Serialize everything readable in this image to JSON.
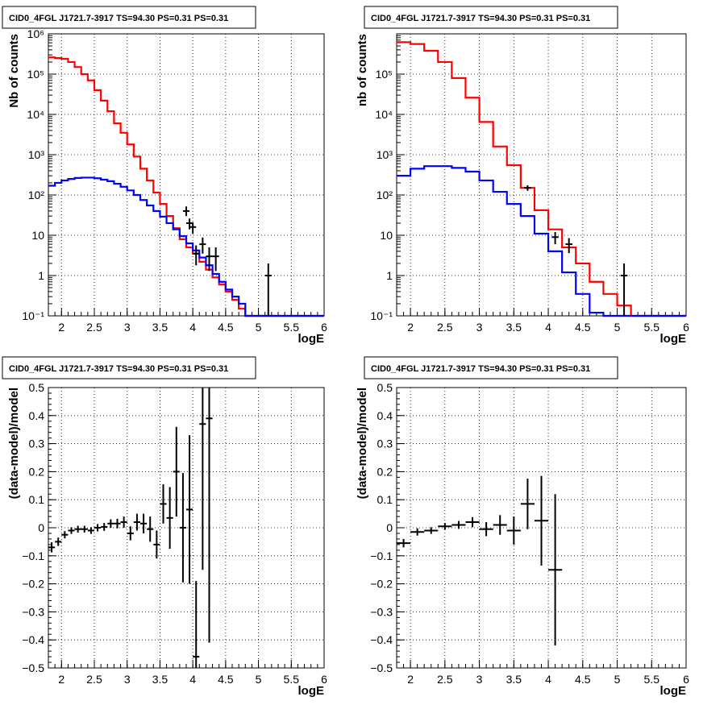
{
  "chart_data": [
    {
      "type": "histogram",
      "title": "CID0_4FGL J1721.7-3917 TS=94.30 PS=0.31 PS=0.31",
      "xlabel": "logE",
      "ylabel": "Nb of counts",
      "xlim": [
        1.8,
        6.0
      ],
      "ylim": [
        0.1,
        1000000
      ],
      "yscale": "log",
      "grid": true,
      "x_ticks": [
        "2",
        "2.5",
        "3",
        "3.5",
        "4",
        "4.5",
        "5",
        "5.5",
        "6"
      ],
      "y_ticks": [
        "10⁻¹",
        "1",
        "10",
        "10²",
        "10³",
        "10⁴",
        "10⁵",
        "10⁶"
      ],
      "bin_edges": [
        1.8,
        1.9,
        2.0,
        2.1,
        2.2,
        2.3,
        2.4,
        2.5,
        2.6,
        2.7,
        2.8,
        2.9,
        3.0,
        3.1,
        3.2,
        3.3,
        3.4,
        3.5,
        3.6,
        3.7,
        3.8,
        3.9,
        4.0,
        4.1,
        4.2,
        4.3,
        4.4,
        4.5,
        4.6,
        4.7,
        4.8,
        4.9,
        5.0,
        5.1,
        5.2,
        5.3,
        5.4,
        5.5,
        5.6,
        5.7,
        5.8,
        5.9,
        6.0
      ],
      "series": [
        {
          "color": "#ff0000",
          "values": [
            260000,
            250000,
            240000,
            200000,
            150000,
            100000,
            70000,
            40000,
            22000,
            12000,
            6000,
            3500,
            1800,
            900,
            450,
            230,
            115,
            60,
            30,
            15,
            8,
            5,
            3.5,
            2.2,
            1.4,
            0.9,
            0.6,
            0.4,
            0.25,
            0.15,
            0.1,
            0.1,
            0.1,
            0.1,
            0.1,
            0.1,
            0.1,
            0.1,
            0.1,
            0.1,
            0.1,
            0.1
          ]
        },
        {
          "color": "#0000ff",
          "values": [
            170,
            200,
            230,
            250,
            265,
            270,
            270,
            260,
            240,
            220,
            190,
            160,
            130,
            100,
            75,
            55,
            40,
            29,
            20,
            14,
            9.5,
            6.3,
            4.2,
            2.8,
            1.8,
            1.1,
            0.7,
            0.45,
            0.3,
            0.2,
            0.1,
            0.1,
            0.1,
            0.1,
            0.1,
            0.1,
            0.1,
            0.1,
            0.1,
            0.1,
            0.1,
            0.1
          ]
        }
      ],
      "points": [
        {
          "x": 3.9,
          "y": 40,
          "ylo": 30,
          "yhi": 52
        },
        {
          "x": 3.95,
          "y": 20,
          "ylo": 14,
          "yhi": 26
        },
        {
          "x": 4.0,
          "y": 16,
          "ylo": 11,
          "yhi": 21
        },
        {
          "x": 4.05,
          "y": 3.5,
          "ylo": 1.8,
          "yhi": 5.6
        },
        {
          "x": 4.15,
          "y": 6,
          "ylo": 3.5,
          "yhi": 8.8
        },
        {
          "x": 4.25,
          "y": 3,
          "ylo": 1.3,
          "yhi": 5.0
        },
        {
          "x": 4.35,
          "y": 3,
          "ylo": 1.3,
          "yhi": 5.0
        },
        {
          "x": 5.15,
          "y": 1,
          "ylo": 0.1,
          "yhi": 2.0
        }
      ]
    },
    {
      "type": "histogram",
      "title": "CID0_4FGL J1721.7-3917 TS=94.30 PS=0.31 PS=0.31",
      "xlabel": "logE",
      "ylabel": "nb of counts",
      "xlim": [
        1.8,
        6.0
      ],
      "ylim": [
        0.1,
        1000000
      ],
      "yscale": "log",
      "grid": true,
      "x_ticks": [
        "2",
        "2.5",
        "3",
        "3.5",
        "4",
        "4.5",
        "5",
        "5.5",
        "6"
      ],
      "y_ticks": [
        "10⁻¹",
        "1",
        "10",
        "10²",
        "10³",
        "10⁴",
        "10⁵"
      ],
      "bin_edges": [
        1.8,
        2.0,
        2.2,
        2.4,
        2.6,
        2.8,
        3.0,
        3.2,
        3.4,
        3.6,
        3.8,
        4.0,
        4.2,
        4.4,
        4.6,
        4.8,
        5.0,
        5.2,
        5.4,
        5.6,
        5.8,
        6.0
      ],
      "series": [
        {
          "color": "#ff0000",
          "values": [
            620000,
            560000,
            380000,
            200000,
            80000,
            26000,
            6500,
            1600,
            550,
            150,
            42,
            14,
            5,
            2,
            0.7,
            0.35,
            0.18,
            0.1,
            0.1,
            0.1,
            0.1
          ]
        },
        {
          "color": "#0000ff",
          "values": [
            300,
            450,
            520,
            520,
            470,
            380,
            230,
            120,
            60,
            30,
            11,
            4,
            1.2,
            0.35,
            0.12,
            0.1,
            0.1,
            0.1,
            0.1,
            0.1,
            0.1
          ]
        }
      ],
      "points": [
        {
          "x": 3.7,
          "y": 150,
          "ylo": 127,
          "yhi": 174
        },
        {
          "x": 4.1,
          "y": 9,
          "ylo": 6,
          "yhi": 12
        },
        {
          "x": 4.3,
          "y": 6,
          "ylo": 3.6,
          "yhi": 8.5
        },
        {
          "x": 5.1,
          "y": 1,
          "ylo": 0.1,
          "yhi": 2.0
        }
      ]
    },
    {
      "type": "scatter",
      "title": "CID0_4FGL J1721.7-3917 TS=94.30 PS=0.31 PS=0.31",
      "xlabel": "logE",
      "ylabel": "(data-model)/model",
      "xlim": [
        1.8,
        6.0
      ],
      "ylim": [
        -0.5,
        0.5
      ],
      "grid": true,
      "x_ticks": [
        "2",
        "2.5",
        "3",
        "3.5",
        "4",
        "4.5",
        "5",
        "5.5",
        "6"
      ],
      "y_ticks": [
        "−0.5",
        "−0.4",
        "−0.3",
        "−0.2",
        "−0.1",
        "0",
        "0.1",
        "0.2",
        "0.3",
        "0.4",
        "0.5"
      ],
      "points": [
        {
          "x": 1.85,
          "y": -0.07,
          "xerr": 0.05,
          "yerr": 0.018
        },
        {
          "x": 1.95,
          "y": -0.05,
          "xerr": 0.05,
          "yerr": 0.015
        },
        {
          "x": 2.05,
          "y": -0.025,
          "xerr": 0.05,
          "yerr": 0.013
        },
        {
          "x": 2.15,
          "y": -0.01,
          "xerr": 0.05,
          "yerr": 0.012
        },
        {
          "x": 2.25,
          "y": -0.005,
          "xerr": 0.05,
          "yerr": 0.012
        },
        {
          "x": 2.35,
          "y": -0.005,
          "xerr": 0.05,
          "yerr": 0.012
        },
        {
          "x": 2.45,
          "y": -0.01,
          "xerr": 0.05,
          "yerr": 0.012
        },
        {
          "x": 2.55,
          "y": 0.0,
          "xerr": 0.05,
          "yerr": 0.013
        },
        {
          "x": 2.65,
          "y": 0.003,
          "xerr": 0.05,
          "yerr": 0.014
        },
        {
          "x": 2.75,
          "y": 0.015,
          "xerr": 0.05,
          "yerr": 0.015
        },
        {
          "x": 2.85,
          "y": 0.015,
          "xerr": 0.05,
          "yerr": 0.017
        },
        {
          "x": 2.95,
          "y": 0.02,
          "xerr": 0.05,
          "yerr": 0.02
        },
        {
          "x": 3.05,
          "y": -0.02,
          "xerr": 0.05,
          "yerr": 0.025
        },
        {
          "x": 3.15,
          "y": 0.02,
          "xerr": 0.05,
          "yerr": 0.03
        },
        {
          "x": 3.25,
          "y": 0.015,
          "xerr": 0.05,
          "yerr": 0.035
        },
        {
          "x": 3.35,
          "y": -0.005,
          "xerr": 0.05,
          "yerr": 0.045
        },
        {
          "x": 3.45,
          "y": -0.06,
          "xerr": 0.05,
          "yerr": 0.05
        },
        {
          "x": 3.55,
          "y": 0.085,
          "xerr": 0.05,
          "yerr": 0.07
        },
        {
          "x": 3.65,
          "y": 0.035,
          "xerr": 0.05,
          "yerr": 0.11
        },
        {
          "x": 3.75,
          "y": 0.2,
          "xerr": 0.05,
          "yerr": 0.16
        },
        {
          "x": 3.85,
          "y": 0.0,
          "xerr": 0.05,
          "yerr": 0.195
        },
        {
          "x": 3.95,
          "y": 0.065,
          "xerr": 0.05,
          "yerr": 0.265
        },
        {
          "x": 4.05,
          "y": -0.46,
          "xerr": 0.05,
          "yerr": 0.27
        },
        {
          "x": 4.15,
          "y": 0.37,
          "xerr": 0.05,
          "yerr": 0.52
        },
        {
          "x": 4.25,
          "y": 0.39,
          "xerr": 0.05,
          "yerr": 0.8
        }
      ]
    },
    {
      "type": "scatter",
      "title": "CID0_4FGL J1721.7-3917 TS=94.30 PS=0.31 PS=0.31",
      "xlabel": "logE",
      "ylabel": "(data-model)/model",
      "xlim": [
        1.8,
        6.0
      ],
      "ylim": [
        -0.5,
        0.5
      ],
      "grid": true,
      "x_ticks": [
        "2",
        "2.5",
        "3",
        "3.5",
        "4",
        "4.5",
        "5",
        "5.5",
        "6"
      ],
      "y_ticks": [
        "−0.5",
        "−0.4",
        "−0.3",
        "−0.2",
        "−0.1",
        "0",
        "0.1",
        "0.2",
        "0.3",
        "0.4",
        "0.5"
      ],
      "points": [
        {
          "x": 1.9,
          "y": -0.055,
          "xerr": 0.1,
          "yerr": 0.015
        },
        {
          "x": 2.1,
          "y": -0.015,
          "xerr": 0.1,
          "yerr": 0.013
        },
        {
          "x": 2.3,
          "y": -0.01,
          "xerr": 0.1,
          "yerr": 0.012
        },
        {
          "x": 2.5,
          "y": 0.005,
          "xerr": 0.1,
          "yerr": 0.012
        },
        {
          "x": 2.7,
          "y": 0.01,
          "xerr": 0.1,
          "yerr": 0.014
        },
        {
          "x": 2.9,
          "y": 0.02,
          "xerr": 0.1,
          "yerr": 0.018
        },
        {
          "x": 3.1,
          "y": -0.005,
          "xerr": 0.1,
          "yerr": 0.025
        },
        {
          "x": 3.3,
          "y": 0.01,
          "xerr": 0.1,
          "yerr": 0.035
        },
        {
          "x": 3.5,
          "y": -0.01,
          "xerr": 0.1,
          "yerr": 0.05
        },
        {
          "x": 3.7,
          "y": 0.085,
          "xerr": 0.1,
          "yerr": 0.09
        },
        {
          "x": 3.9,
          "y": 0.025,
          "xerr": 0.1,
          "yerr": 0.16
        },
        {
          "x": 4.1,
          "y": -0.15,
          "xerr": 0.1,
          "yerr": 0.27
        }
      ]
    }
  ]
}
